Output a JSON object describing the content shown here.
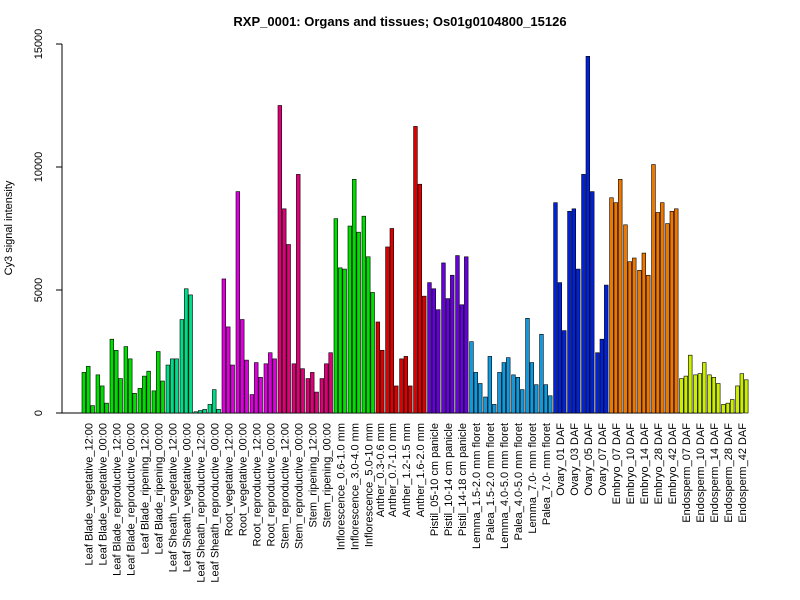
{
  "chart_data": {
    "type": "bar",
    "title": "RXP_0001: Organs and tissues; Os01g0104800_15126",
    "xlabel": "",
    "ylabel": "Cy3 signal intensity",
    "ylim": [
      0,
      15000
    ],
    "yticks": [
      0,
      5000,
      10000,
      15000
    ],
    "grid": false,
    "x_tick_labels": [
      "Leaf Blade_vegetative_12:00",
      "Leaf Blade_vegetative_00:00",
      "Leaf Blade_reproductive_12:00",
      "Leaf Blade_reproductive_00:00",
      "Leaf Blade_ripening_12:00",
      "Leaf Blade_ripening_00:00",
      "Leaf Sheath_vegetative_12:00",
      "Leaf Sheath_vegetative_00:00",
      "Leaf Sheath_reproductive_12:00",
      "Leaf Sheath_reproductive_00:00",
      "Root_vegetative_12:00",
      "Root_vegetative_00:00",
      "Root_reproductive_12:00",
      "Root_reproductive_00:00",
      "Stem_reproductive_12:00",
      "Stem_reproductive_00:00",
      "Stem_ripening_12:00",
      "Stem_ripening_00:00",
      "Inflorescence_0.6-1.0 mm",
      "Inflorescence_3.0-4.0 mm",
      "Inflorescence_5.0-10 mm",
      "Anther_0.3-0.6 mm",
      "Anther_0.7-1.0 mm",
      "Anther_1.2-1.5 mm",
      "Anther_1.6-2.0 mm",
      "Pistil_05-10 cm panicle",
      "Pistil_10-14 cm panicle",
      "Pistil_14-18 cm panicle",
      "Lemma_1.5-2.0 mm floret",
      "Palea_1.5-2.0 mm floret",
      "Lemma_4.0-5.0 mm floret",
      "Palea_4.0-5.0 mm floret",
      "Lemma_7.0- mm floret",
      "Palea_7.0- mm floret",
      "Ovary_01 DAF",
      "Ovary_03 DAF",
      "Ovary_05 DAF",
      "Ovary_07 DAF",
      "Embryo_07 DAF",
      "Embryo_10 DAF",
      "Embryo_14 DAF",
      "Embryo_28 DAF",
      "Embryo_42 DAF",
      "Endosperm_07 DAF",
      "Endosperm_10 DAF",
      "Endosperm_14 DAF",
      "Endosperm_28 DAF",
      "Endosperm_42 DAF"
    ],
    "groups": [
      {
        "name": "Leaf Blade_vegetative_12:00",
        "color": "#00dd00",
        "values": [
          1650,
          1900,
          300
        ]
      },
      {
        "name": "Leaf Blade_vegetative_00:00",
        "color": "#00dd00",
        "values": [
          1550,
          1100,
          400
        ]
      },
      {
        "name": "Leaf Blade_reproductive_12:00",
        "color": "#00dd00",
        "values": [
          3000,
          2550,
          1400
        ]
      },
      {
        "name": "Leaf Blade_reproductive_00:00",
        "color": "#00dd00",
        "values": [
          2700,
          2200,
          800
        ]
      },
      {
        "name": "Leaf Blade_ripening_12:00",
        "color": "#00dd00",
        "values": [
          1000,
          1500,
          1700
        ]
      },
      {
        "name": "Leaf Blade_ripening_00:00",
        "color": "#00dd00",
        "values": [
          900,
          2500,
          1300
        ]
      },
      {
        "name": "Leaf Sheath_vegetative_12:00",
        "color": "#00dd88",
        "values": [
          1950,
          2200,
          2200
        ]
      },
      {
        "name": "Leaf Sheath_vegetative_00:00",
        "color": "#00dd88",
        "values": [
          3800,
          5050,
          4800
        ]
      },
      {
        "name": "Leaf Sheath_reproductive_12:00",
        "color": "#00dd88",
        "values": [
          50,
          100,
          150
        ]
      },
      {
        "name": "Leaf Sheath_reproductive_00:00",
        "color": "#00dd88",
        "values": [
          350,
          950,
          150
        ]
      },
      {
        "name": "Root_vegetative_12:00",
        "color": "#dd00dd",
        "values": [
          5450,
          3500,
          1950
        ]
      },
      {
        "name": "Root_vegetative_00:00",
        "color": "#dd00dd",
        "values": [
          9000,
          3800,
          2150
        ]
      },
      {
        "name": "Root_reproductive_12:00",
        "color": "#dd00dd",
        "values": [
          750,
          2050,
          1450
        ]
      },
      {
        "name": "Root_reproductive_00:00",
        "color": "#dd00dd",
        "values": [
          2000,
          2450,
          2200
        ]
      },
      {
        "name": "Stem_reproductive_12:00",
        "color": "#dd0077",
        "values": [
          12500,
          8300,
          6850
        ]
      },
      {
        "name": "Stem_reproductive_00:00",
        "color": "#dd0077",
        "values": [
          2000,
          9700,
          1800
        ]
      },
      {
        "name": "Stem_ripening_12:00",
        "color": "#dd0077",
        "values": [
          1400,
          1650,
          850
        ]
      },
      {
        "name": "Stem_ripening_00:00",
        "color": "#dd0077",
        "values": [
          1400,
          2000,
          2450
        ]
      },
      {
        "name": "Inflorescence_0.6-1.0 mm",
        "color": "#00dd00",
        "values": [
          7900,
          5900,
          5850
        ]
      },
      {
        "name": "Inflorescence_3.0-4.0 mm",
        "color": "#00dd00",
        "values": [
          7600,
          9500,
          7350
        ]
      },
      {
        "name": "Inflorescence_5.0-10 mm",
        "color": "#00dd00",
        "values": [
          8000,
          6350,
          4900
        ]
      },
      {
        "name": "Anther_0.3-0.6 mm",
        "color": "#dd0000",
        "values": [
          3700,
          2550
        ]
      },
      {
        "name": "Anther_0.7-1.0 mm",
        "color": "#dd0000",
        "values": [
          6750,
          7500,
          1100
        ]
      },
      {
        "name": "Anther_1.2-1.5 mm",
        "color": "#dd0000",
        "values": [
          2200,
          2300,
          1100
        ]
      },
      {
        "name": "Anther_1.6-2.0 mm",
        "color": "#dd0000",
        "values": [
          11650,
          9300,
          4750
        ]
      },
      {
        "name": "Pistil_05-10 cm panicle",
        "color": "#6600dd",
        "values": [
          5300,
          5050,
          4200
        ]
      },
      {
        "name": "Pistil_10-14 cm panicle",
        "color": "#6600dd",
        "values": [
          6100,
          4650,
          5600
        ]
      },
      {
        "name": "Pistil_14-18 cm panicle",
        "color": "#6600dd",
        "values": [
          6400,
          4400,
          6350
        ]
      },
      {
        "name": "Lemma_1.5-2.0 mm floret",
        "color": "#1199dd",
        "values": [
          2900,
          1650,
          1200
        ]
      },
      {
        "name": "Palea_1.5-2.0 mm floret",
        "color": "#1199dd",
        "values": [
          650,
          2300,
          350
        ]
      },
      {
        "name": "Lemma_4.0-5.0 mm floret",
        "color": "#1199dd",
        "values": [
          1650,
          2050,
          2250
        ]
      },
      {
        "name": "Palea_4.0-5.0 mm floret",
        "color": "#1199dd",
        "values": [
          1550,
          1450,
          950
        ]
      },
      {
        "name": "Lemma_7.0- mm floret",
        "color": "#1199dd",
        "values": [
          3850,
          2050,
          1150
        ]
      },
      {
        "name": "Palea_7.0- mm floret",
        "color": "#1199dd",
        "values": [
          3200,
          1150,
          700
        ]
      },
      {
        "name": "Ovary_01 DAF",
        "color": "#0022dd",
        "values": [
          8550,
          5300,
          3350
        ]
      },
      {
        "name": "Ovary_03 DAF",
        "color": "#0022dd",
        "values": [
          8200,
          8300,
          5850
        ]
      },
      {
        "name": "Ovary_05 DAF",
        "color": "#0022dd",
        "values": [
          9700,
          14500,
          9000
        ]
      },
      {
        "name": "Ovary_07 DAF",
        "color": "#0022dd",
        "values": [
          2450,
          3000,
          5200
        ]
      },
      {
        "name": "Embryo_07 DAF",
        "color": "#ee7700",
        "values": [
          8750,
          8550,
          9500
        ]
      },
      {
        "name": "Embryo_10 DAF",
        "color": "#ee7700",
        "values": [
          7650,
          6150,
          6300
        ]
      },
      {
        "name": "Embryo_14 DAF",
        "color": "#ee7700",
        "values": [
          5800,
          6500,
          5600
        ]
      },
      {
        "name": "Embryo_28 DAF",
        "color": "#ee7700",
        "values": [
          10100,
          8150,
          8550
        ]
      },
      {
        "name": "Embryo_42 DAF",
        "color": "#ee7700",
        "values": [
          7700,
          8200,
          8300
        ]
      },
      {
        "name": "Endosperm_07 DAF",
        "color": "#ccee00",
        "values": [
          1400,
          1500,
          2350
        ]
      },
      {
        "name": "Endosperm_10 DAF",
        "color": "#ccee00",
        "values": [
          1550,
          1600,
          2050
        ]
      },
      {
        "name": "Endosperm_14 DAF",
        "color": "#ccee00",
        "values": [
          1550,
          1450,
          1200
        ]
      },
      {
        "name": "Endosperm_28 DAF",
        "color": "#ccee00",
        "values": [
          350,
          400,
          550
        ]
      },
      {
        "name": "Endosperm_42 DAF",
        "color": "#ccee00",
        "values": [
          1100,
          1600,
          1350
        ]
      }
    ]
  }
}
